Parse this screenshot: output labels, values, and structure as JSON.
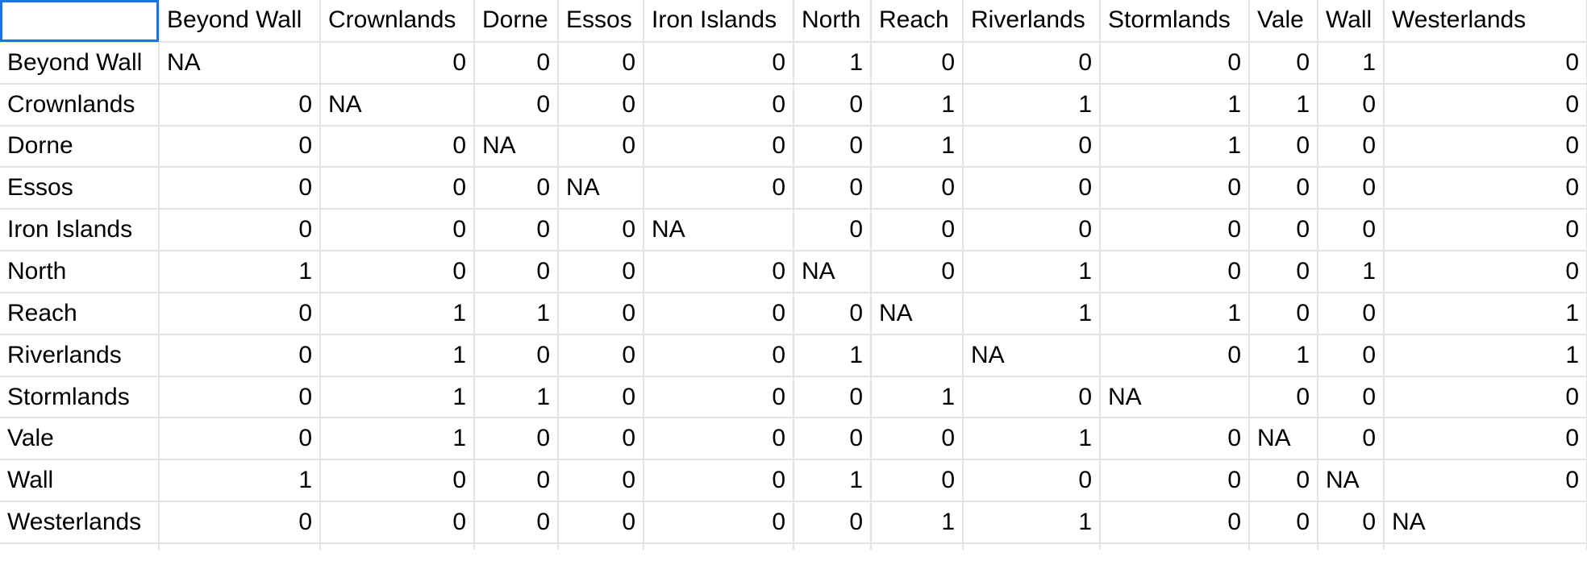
{
  "sheet": {
    "selected_cell": "A1",
    "corner_value": "",
    "columns": [
      "Beyond Wall",
      "Crownlands",
      "Dorne",
      "Essos",
      "Iron Islands",
      "North",
      "Reach",
      "Riverlands",
      "Stormlands",
      "Vale",
      "Wall",
      "Westerlands"
    ],
    "rows": [
      {
        "label": "Beyond Wall",
        "cells": [
          "NA",
          "0",
          "0",
          "0",
          "0",
          "1",
          "0",
          "0",
          "0",
          "0",
          "1",
          "0"
        ]
      },
      {
        "label": "Crownlands",
        "cells": [
          "0",
          "NA",
          "0",
          "0",
          "0",
          "0",
          "1",
          "1",
          "1",
          "1",
          "0",
          "0"
        ]
      },
      {
        "label": "Dorne",
        "cells": [
          "0",
          "0",
          "NA",
          "0",
          "0",
          "0",
          "1",
          "0",
          "1",
          "0",
          "0",
          "0"
        ]
      },
      {
        "label": "Essos",
        "cells": [
          "0",
          "0",
          "0",
          "NA",
          "0",
          "0",
          "0",
          "0",
          "0",
          "0",
          "0",
          "0"
        ]
      },
      {
        "label": "Iron Islands",
        "cells": [
          "0",
          "0",
          "0",
          "0",
          "NA",
          "0",
          "0",
          "0",
          "0",
          "0",
          "0",
          "0"
        ]
      },
      {
        "label": "North",
        "cells": [
          "1",
          "0",
          "0",
          "0",
          "0",
          "NA",
          "0",
          "1",
          "0",
          "0",
          "1",
          "0"
        ]
      },
      {
        "label": "Reach",
        "cells": [
          "0",
          "1",
          "1",
          "0",
          "0",
          "0",
          "NA",
          "1",
          "1",
          "0",
          "0",
          "1"
        ]
      },
      {
        "label": "Riverlands",
        "cells": [
          "0",
          "1",
          "0",
          "0",
          "0",
          "1",
          "",
          "NA",
          "0",
          "1",
          "0",
          "1"
        ]
      },
      {
        "label": "Stormlands",
        "cells": [
          "0",
          "1",
          "1",
          "0",
          "0",
          "0",
          "1",
          "0",
          "NA",
          "0",
          "0",
          "0"
        ]
      },
      {
        "label": "Vale",
        "cells": [
          "0",
          "1",
          "0",
          "0",
          "0",
          "0",
          "0",
          "1",
          "0",
          "NA",
          "0",
          "0"
        ]
      },
      {
        "label": "Wall",
        "cells": [
          "1",
          "0",
          "0",
          "0",
          "0",
          "1",
          "0",
          "0",
          "0",
          "0",
          "NA",
          "0"
        ]
      },
      {
        "label": "Westerlands",
        "cells": [
          "0",
          "0",
          "0",
          "0",
          "0",
          "0",
          "1",
          "1",
          "0",
          "0",
          "0",
          "NA"
        ]
      }
    ]
  }
}
